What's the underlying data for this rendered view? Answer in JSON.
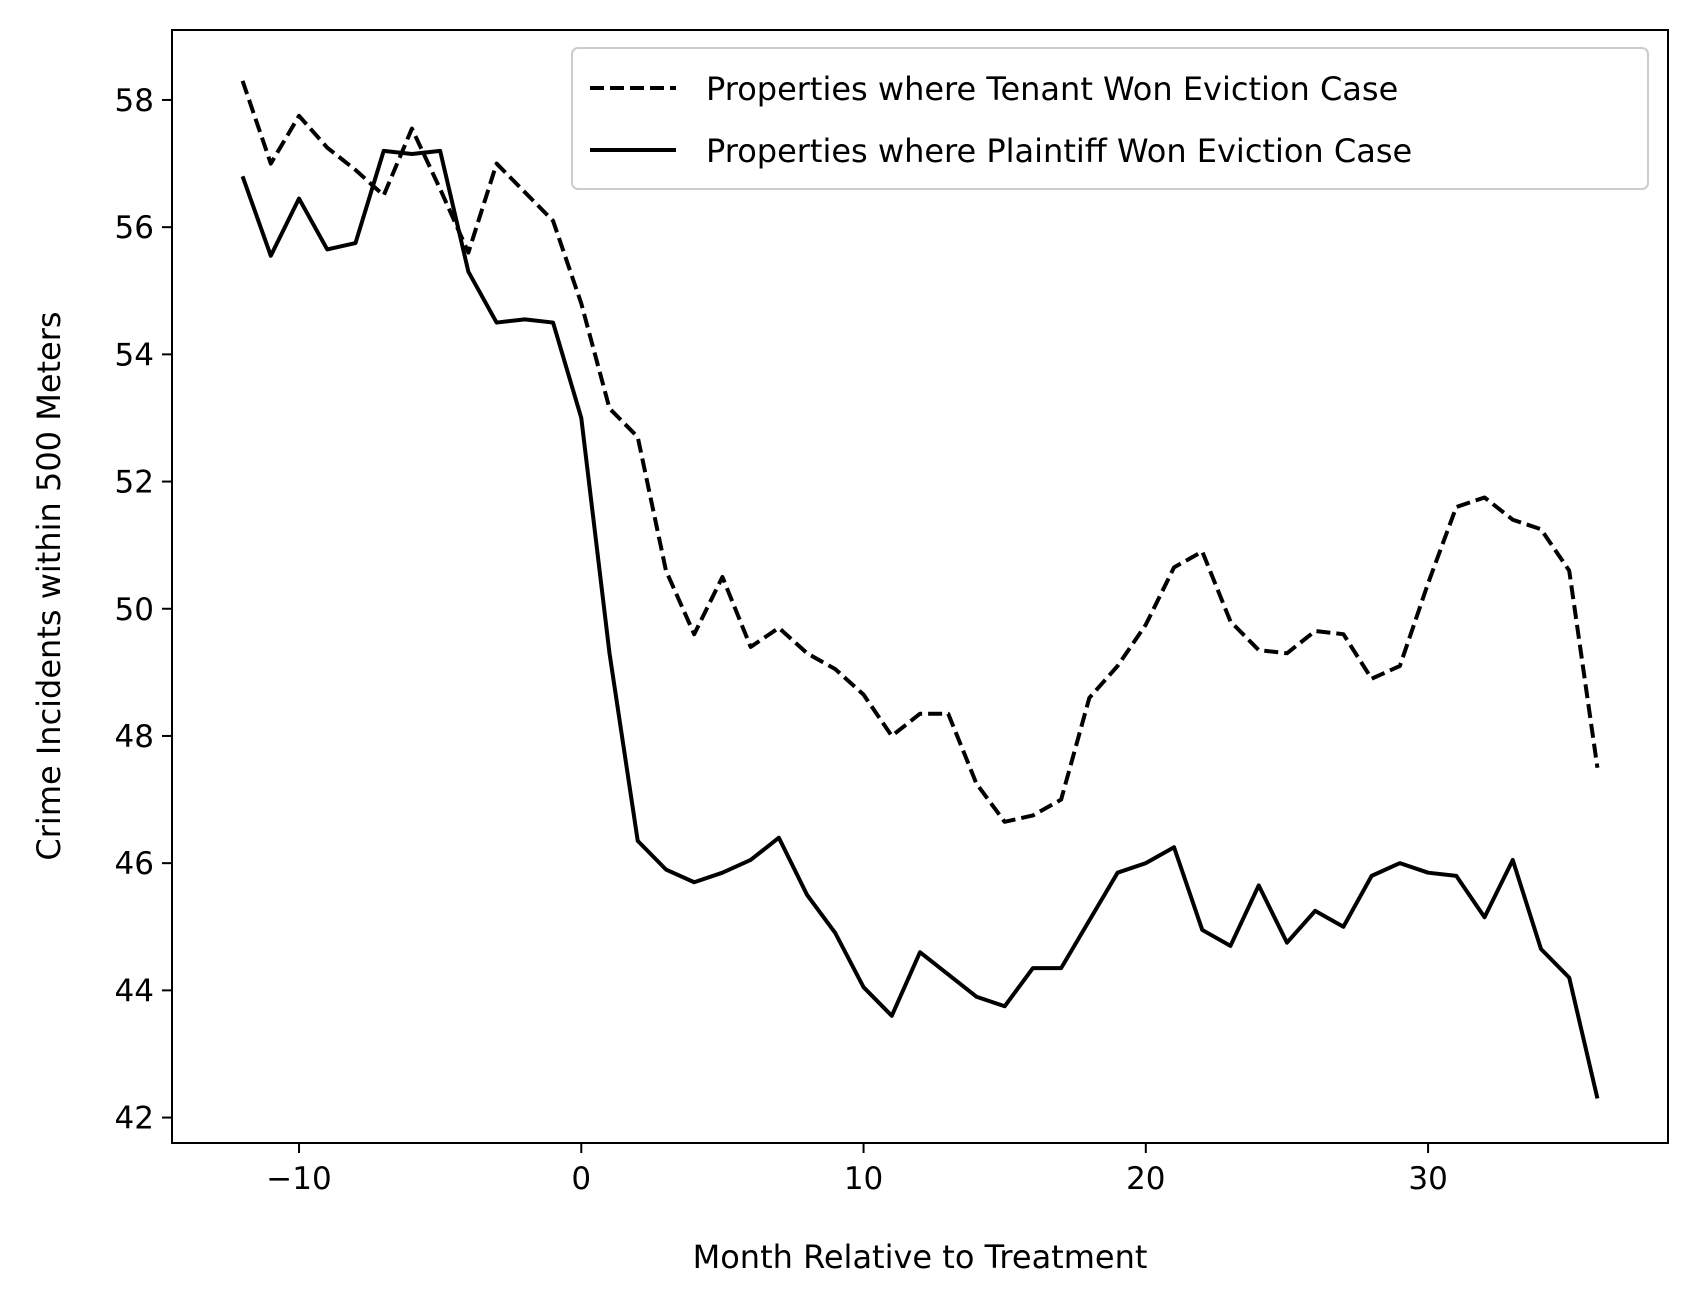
{
  "chart_data": {
    "type": "line",
    "title": "",
    "xlabel": "Month Relative to Treatment",
    "ylabel": "Crime Incidents within 500 Meters",
    "xlim": [
      -14.5,
      38.5
    ],
    "ylim": [
      41.6,
      59.1
    ],
    "xticks": [
      -10,
      0,
      10,
      20,
      30
    ],
    "xtick_labels": [
      "−10",
      "0",
      "10",
      "20",
      "30"
    ],
    "yticks": [
      42,
      44,
      46,
      48,
      50,
      52,
      54,
      56,
      58
    ],
    "ytick_labels": [
      "42",
      "44",
      "46",
      "48",
      "50",
      "52",
      "54",
      "56",
      "58"
    ],
    "grid": false,
    "legend_position": "top-right",
    "x": [
      -12,
      -11,
      -10,
      -9,
      -8,
      -7,
      -6,
      -5,
      -4,
      -3,
      -2,
      -1,
      0,
      1,
      2,
      3,
      4,
      5,
      6,
      7,
      8,
      9,
      10,
      11,
      12,
      13,
      14,
      15,
      16,
      17,
      18,
      19,
      20,
      21,
      22,
      23,
      24,
      25,
      26,
      27,
      28,
      29,
      30,
      31,
      32,
      33,
      34,
      35,
      36
    ],
    "series": [
      {
        "name": "Properties where Tenant Won Eviction Case",
        "style": "dashed",
        "color": "#000000",
        "values": [
          58.3,
          57.0,
          57.75,
          57.25,
          56.9,
          56.5,
          57.55,
          56.6,
          55.6,
          57.0,
          56.55,
          56.1,
          54.8,
          53.15,
          52.7,
          50.6,
          49.6,
          50.5,
          49.4,
          49.7,
          49.3,
          49.05,
          48.65,
          48.0,
          48.35,
          48.35,
          47.25,
          46.65,
          46.75,
          47.0,
          48.6,
          49.1,
          49.75,
          50.65,
          50.9,
          49.8,
          49.35,
          49.3,
          49.65,
          49.6,
          48.9,
          49.1,
          50.4,
          51.6,
          51.75,
          51.4,
          51.25,
          50.6,
          47.5
        ]
      },
      {
        "name": "Properties where Plaintiff Won Eviction Case",
        "style": "solid",
        "color": "#000000",
        "values": [
          56.8,
          55.55,
          56.45,
          55.65,
          55.75,
          57.2,
          57.15,
          57.2,
          55.3,
          54.5,
          54.55,
          54.5,
          53.0,
          49.3,
          46.35,
          45.9,
          45.7,
          45.85,
          46.05,
          46.4,
          45.5,
          44.9,
          44.05,
          43.6,
          44.6,
          44.25,
          43.9,
          43.75,
          44.35,
          44.35,
          45.1,
          45.85,
          46.0,
          46.25,
          44.95,
          44.7,
          45.65,
          44.75,
          45.25,
          45.0,
          45.8,
          46.0,
          45.85,
          45.8,
          45.15,
          46.05,
          44.65,
          44.2,
          42.3
        ]
      }
    ]
  }
}
